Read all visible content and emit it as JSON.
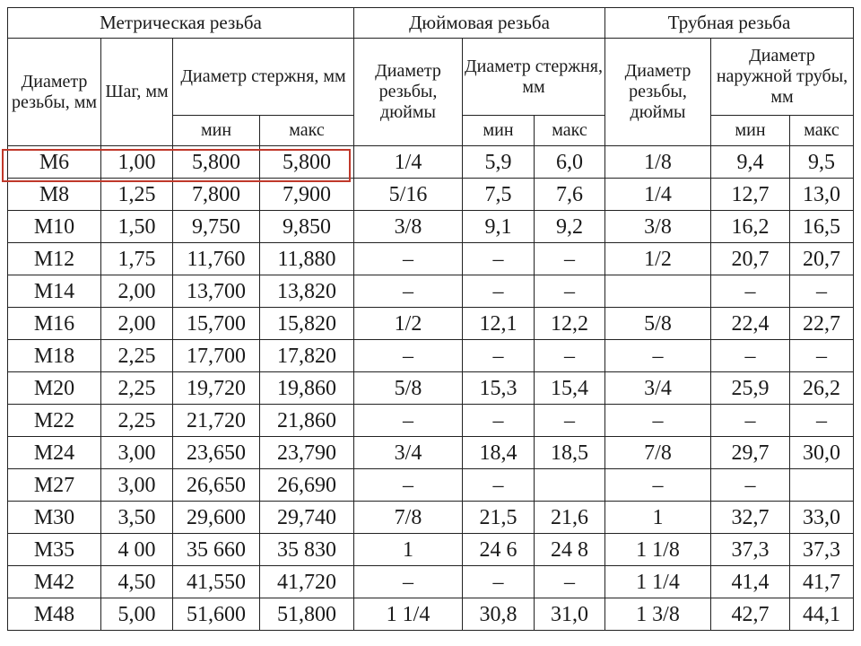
{
  "headers": {
    "groups": [
      "Метрическая резьба",
      "Дюймовая резьба",
      "Трубная резьба"
    ],
    "thread_diameter_mm": "Диаметр резьбы, мм",
    "pitch_mm": "Шаг, мм",
    "rod_diameter_mm": "Диаметр стержня, мм",
    "thread_diameter_in": "Диаметр резьбы, дюймы",
    "rod_diameter_mm_2": "Диаметр стержня, мм",
    "thread_diameter_in_2": "Диаметр резьбы, дюймы",
    "pipe_outer_diameter_mm": "Диаметр наружной трубы, мм",
    "min": "мин",
    "max": "макс"
  },
  "rows": [
    [
      "М6",
      "1,00",
      "5,800",
      "5,800",
      "1/4",
      "5,9",
      "6,0",
      "1/8",
      "9,4",
      "9,5"
    ],
    [
      "М8",
      "1,25",
      "7,800",
      "7,900",
      "5/16",
      "7,5",
      "7,6",
      "1/4",
      "12,7",
      "13,0"
    ],
    [
      "М10",
      "1,50",
      "9,750",
      "9,850",
      "3/8",
      "9,1",
      "9,2",
      "3/8",
      "16,2",
      "16,5"
    ],
    [
      "М12",
      "1,75",
      "11,760",
      "11,880",
      "–",
      "–",
      "–",
      "1/2",
      "20,7",
      "20,7"
    ],
    [
      "М14",
      "2,00",
      "13,700",
      "13,820",
      "–",
      "–",
      "–",
      "",
      "–",
      "–"
    ],
    [
      "М16",
      "2,00",
      "15,700",
      "15,820",
      "1/2",
      "12,1",
      "12,2",
      "5/8",
      "22,4",
      "22,7"
    ],
    [
      "М18",
      "2,25",
      "17,700",
      "17,820",
      "–",
      "–",
      "–",
      "–",
      "–",
      "–"
    ],
    [
      "М20",
      "2,25",
      "19,720",
      "19,860",
      "5/8",
      "15,3",
      "15,4",
      "3/4",
      "25,9",
      "26,2"
    ],
    [
      "М22",
      "2,25",
      "21,720",
      "21,860",
      "–",
      "–",
      "–",
      "–",
      "–",
      "–"
    ],
    [
      "М24",
      "3,00",
      "23,650",
      "23,790",
      "3/4",
      "18,4",
      "18,5",
      "7/8",
      "29,7",
      "30,0"
    ],
    [
      "М27",
      "3,00",
      "26,650",
      "26,690",
      "–",
      "–",
      "",
      "–",
      "–",
      ""
    ],
    [
      "М30",
      "3,50",
      "29,600",
      "29,740",
      "7/8",
      "21,5",
      "21,6",
      "1",
      "32,7",
      "33,0"
    ],
    [
      "М35",
      "4 00",
      "35 660",
      "35 830",
      "1",
      "24 6",
      "24 8",
      "1 1/8",
      "37,3",
      "37,3"
    ],
    [
      "М42",
      "4,50",
      "41,550",
      "41,720",
      "–",
      "–",
      "–",
      "1 1/4",
      "41,4",
      "41,7"
    ],
    [
      "М48",
      "5,00",
      "51,600",
      "51,800",
      "1 1/4",
      "30,8",
      "31,0",
      "1 3/8",
      "42,7",
      "44,1"
    ]
  ],
  "highlight": {
    "color": "#c0392b",
    "row_index": 0
  }
}
